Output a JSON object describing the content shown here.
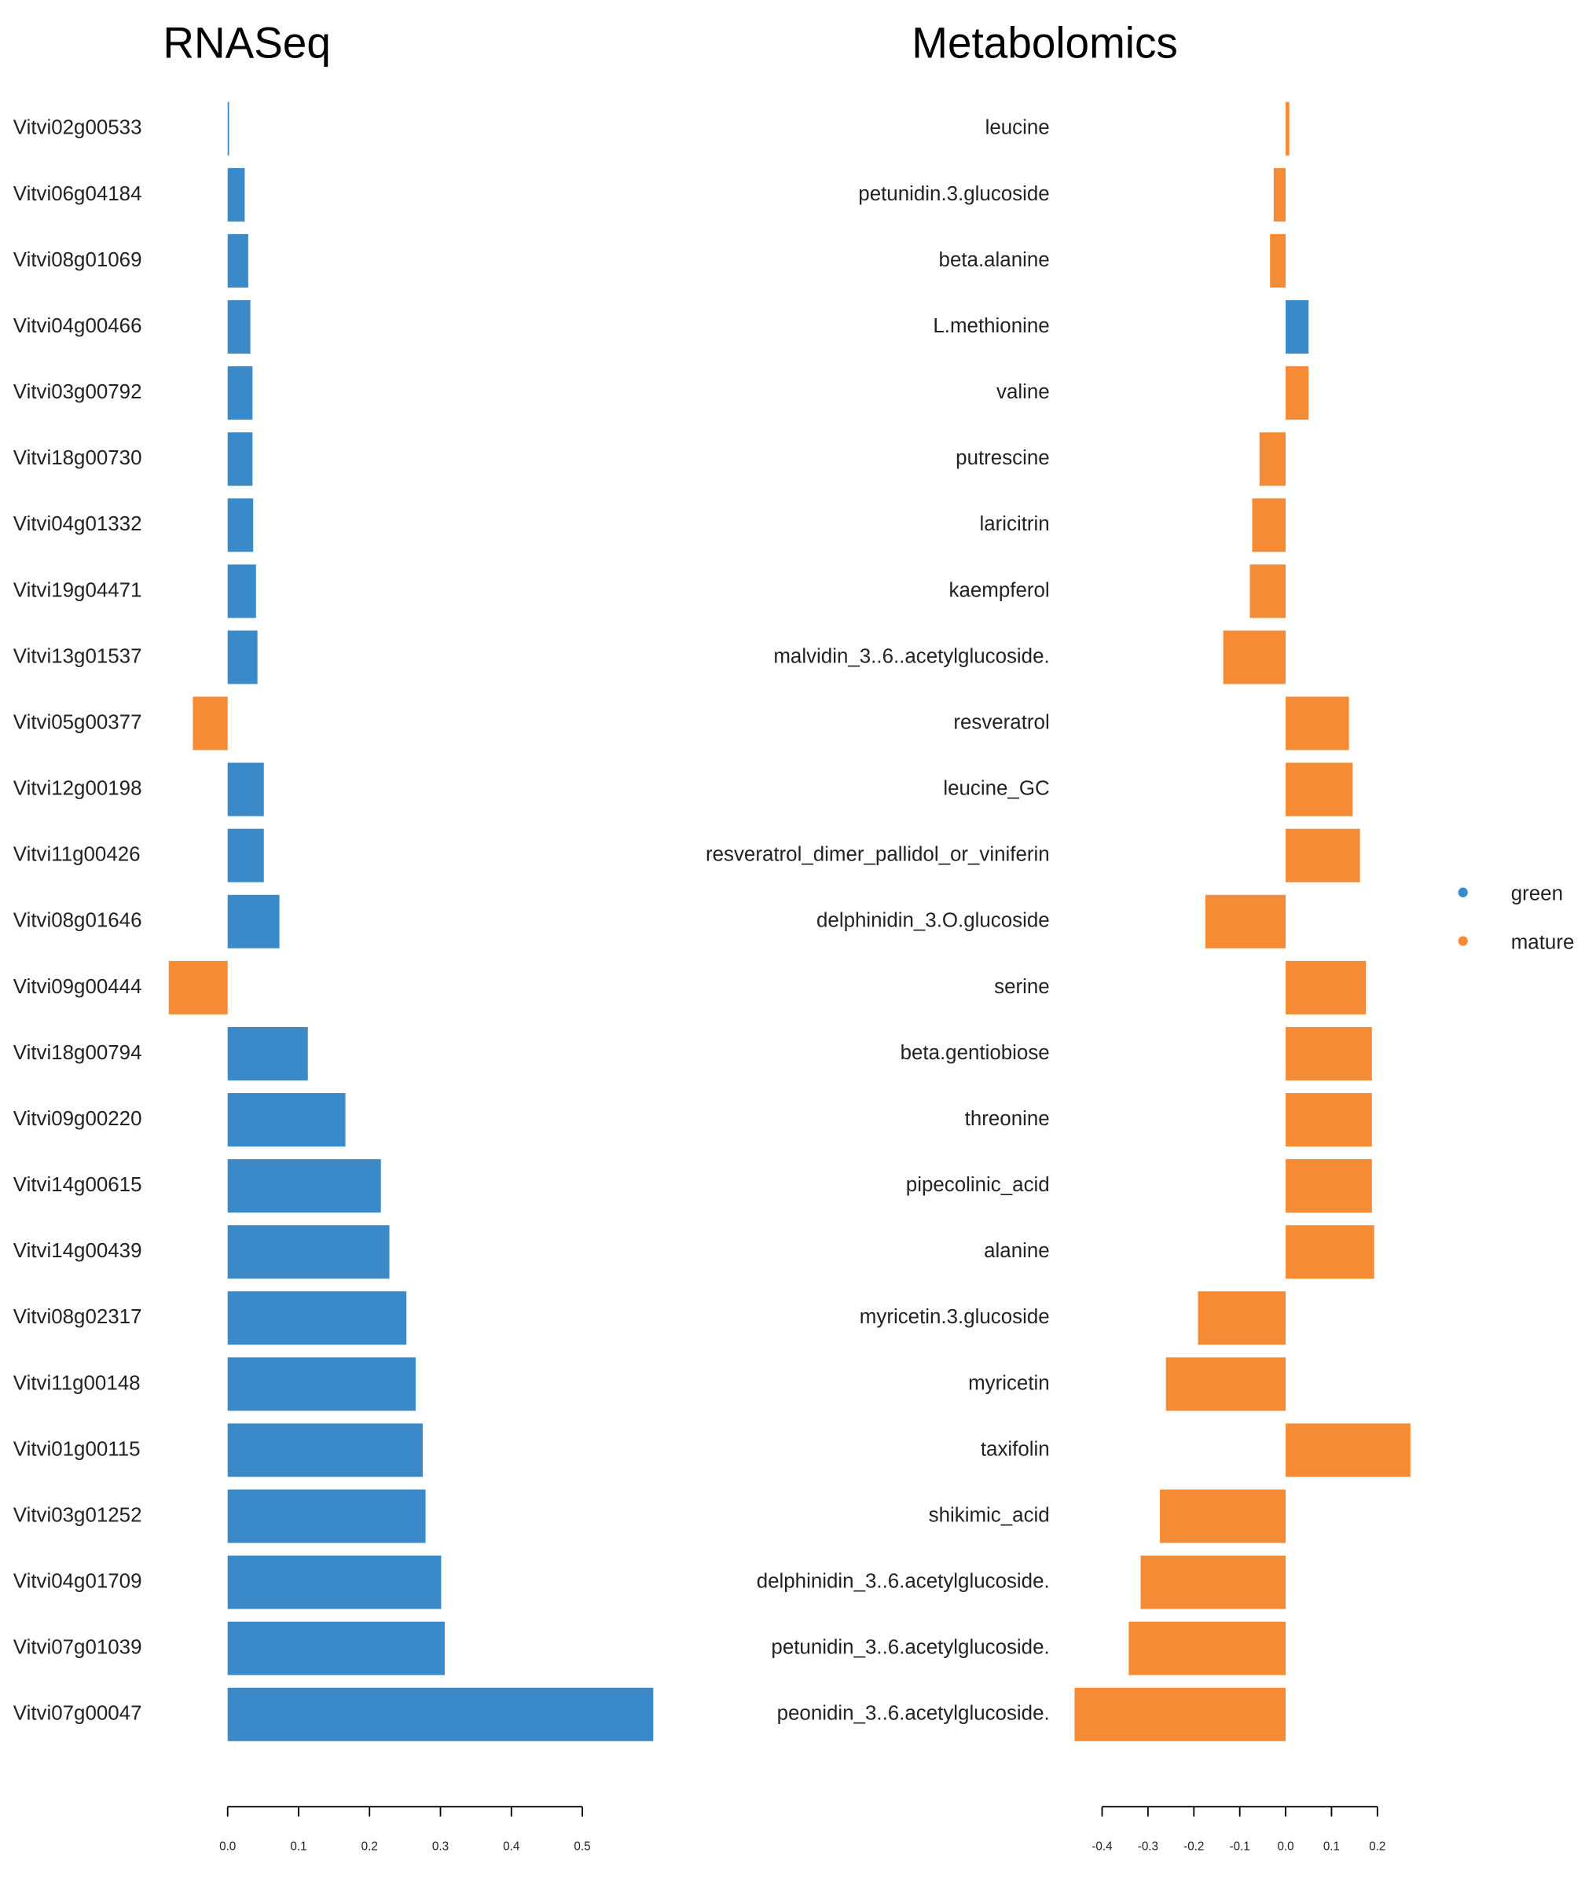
{
  "chart_data": [
    {
      "type": "bar",
      "orientation": "horizontal",
      "title": "RNASeq",
      "categories": [
        "Vitvi02g00533",
        "Vitvi06g04184",
        "Vitvi08g01069",
        "Vitvi04g00466",
        "Vitvi03g00792",
        "Vitvi18g00730",
        "Vitvi04g01332",
        "Vitvi19g04471",
        "Vitvi13g01537",
        "Vitvi05g00377",
        "Vitvi12g00198",
        "Vitvi11g00426",
        "Vitvi08g01646",
        "Vitvi09g00444",
        "Vitvi18g00794",
        "Vitvi09g00220",
        "Vitvi14g00615",
        "Vitvi14g00439",
        "Vitvi08g02317",
        "Vitvi11g00148",
        "Vitvi01g00115",
        "Vitvi03g01252",
        "Vitvi04g01709",
        "Vitvi07g01039",
        "Vitvi07g00047"
      ],
      "series": [
        {
          "color": "#3a89c9",
          "values": [
            0.002,
            0.024,
            0.029,
            0.032,
            0.035,
            0.035,
            0.036,
            0.04,
            0.042,
            null,
            0.051,
            0.051,
            0.073,
            null,
            0.113,
            0.166,
            0.216,
            0.228,
            0.252,
            0.265,
            0.275,
            0.279,
            0.301,
            0.306,
            0.6
          ]
        },
        {
          "color": "#f58b35",
          "values": [
            null,
            null,
            null,
            null,
            null,
            null,
            null,
            null,
            null,
            -0.049,
            null,
            null,
            null,
            -0.083,
            null,
            null,
            null,
            null,
            null,
            null,
            null,
            null,
            null,
            null,
            null
          ]
        }
      ],
      "xlim": [
        -0.1,
        0.6
      ],
      "xticks": [
        {
          "value": 0,
          "label": "0.0"
        },
        0.1,
        0.2,
        0.3,
        0.4,
        0.5
      ]
    },
    {
      "type": "bar",
      "orientation": "horizontal",
      "title": "Metabolomics",
      "categories": [
        "leucine",
        "petunidin.3.glucoside",
        "beta.alanine",
        "L.methionine",
        "valine",
        "putrescine",
        "laricitrin",
        "kaempferol",
        "malvidin_3..6..acetylglucoside.",
        "resveratrol",
        "leucine_GC",
        "resveratrol_dimer_pallidol_or_viniferin",
        "delphinidin_3.O.glucoside",
        "serine",
        "beta.gentiobiose",
        "threonine",
        "pipecolinic_acid",
        "alanine",
        "myricetin.3.glucoside",
        "myricetin",
        "taxifolin",
        "shikimic_acid",
        "delphinidin_3..6.acetylglucoside.",
        "petunidin_3..6.acetylglucoside.",
        "peonidin_3..6.acetylglucoside."
      ],
      "series": [
        {
          "name": "green",
          "color": "#3a89c9",
          "values": [
            null,
            null,
            null,
            0.05,
            null,
            null,
            null,
            null,
            null,
            null,
            null,
            null,
            null,
            null,
            null,
            null,
            null,
            null,
            null,
            null,
            null,
            null,
            null,
            null,
            null
          ]
        },
        {
          "name": "mature",
          "color": "#f58b35",
          "values": [
            0.008,
            -0.026,
            -0.034,
            null,
            0.05,
            -0.057,
            -0.073,
            -0.078,
            -0.136,
            0.138,
            0.146,
            0.162,
            -0.175,
            0.175,
            0.188,
            0.188,
            0.188,
            0.193,
            -0.191,
            -0.261,
            0.272,
            -0.274,
            -0.316,
            -0.342,
            -0.46
          ]
        }
      ],
      "xlim": [
        -0.47,
        0.28
      ],
      "xticks": [
        -0.4,
        -0.3,
        -0.2,
        -0.1,
        {
          "value": 0,
          "label": "0.0"
        },
        0.1,
        0.2
      ],
      "legend": "right"
    }
  ]
}
